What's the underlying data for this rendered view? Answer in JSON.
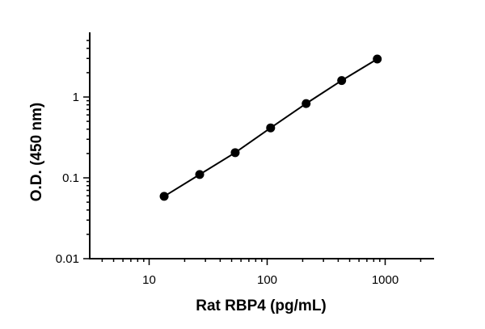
{
  "chart_data": {
    "type": "scatter",
    "xlabel": "Rat RBP4 (pg/mL)",
    "ylabel": "O.D. (450 nm)",
    "x_scale": "log",
    "y_scale": "log",
    "xlim": [
      3,
      2000
    ],
    "ylim": [
      0.01,
      5
    ],
    "x_ticks": [
      10,
      100,
      1000
    ],
    "x_tick_labels": [
      "10",
      "100",
      "1000"
    ],
    "y_ticks": [
      0.01,
      0.1,
      1
    ],
    "y_tick_labels": [
      "0.01",
      "0.1",
      "1"
    ],
    "grid": false,
    "legend": "none",
    "marker_color": "#000000",
    "line_color": "#000000",
    "series": [
      {
        "x": [
          13.4,
          26.8,
          53.6,
          107,
          214,
          428,
          857
        ],
        "y": [
          0.059,
          0.11,
          0.205,
          0.415,
          0.83,
          1.6,
          2.95
        ]
      }
    ]
  }
}
